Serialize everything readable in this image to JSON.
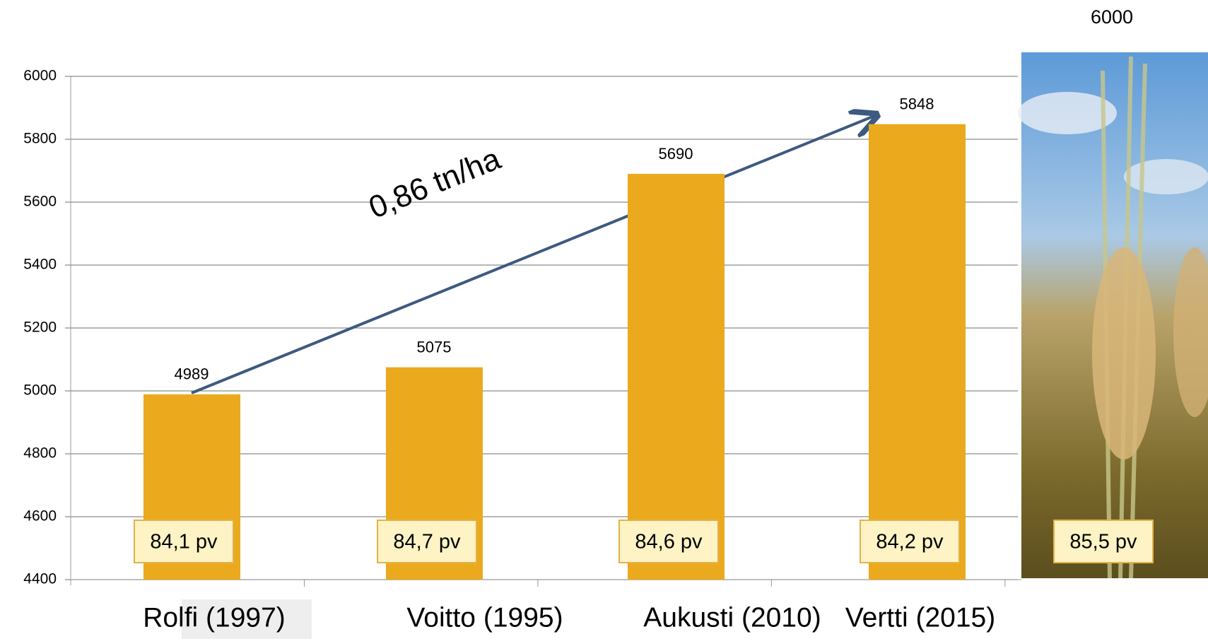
{
  "chart_data": {
    "type": "bar",
    "categories": [
      "Rolfi (1997)",
      "Voitto (1995)",
      "Aukusti (2010)",
      "Vertti (2015)"
    ],
    "values": [
      4989,
      5075,
      5690,
      5848
    ],
    "color": "#eba91e",
    "ylim": [
      4400,
      6000
    ],
    "yticks": [
      4400,
      4600,
      4800,
      5000,
      5200,
      5400,
      5600,
      5800,
      6000
    ],
    "grid": true,
    "annotations": [
      "0,86 tn/ha",
      "6000"
    ],
    "day_labels": [
      "84,1 pv",
      "84,7 pv",
      "84,6 pv",
      "84,2 pv",
      "85,5 pv"
    ]
  }
}
